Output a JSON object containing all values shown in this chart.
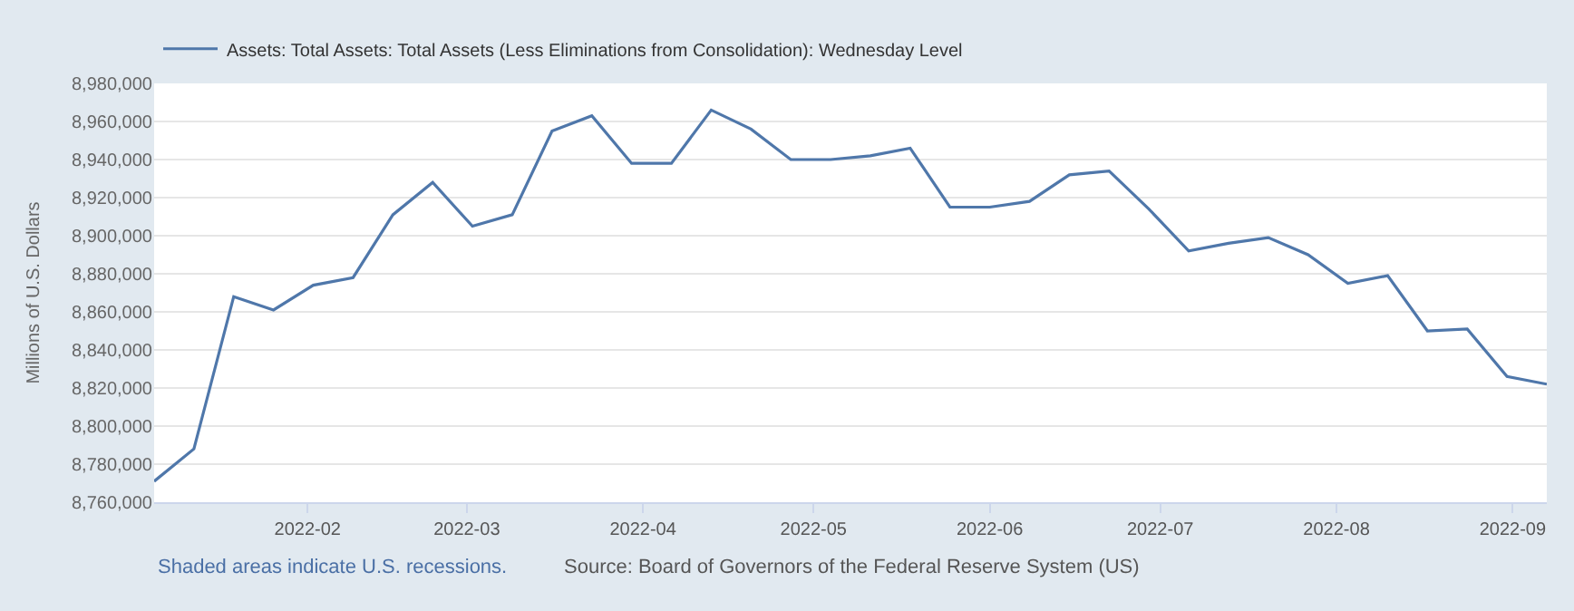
{
  "chart_data": {
    "type": "line",
    "ylabel": "Millions of U.S. Dollars",
    "x": [
      "2022-01-05",
      "2022-01-12",
      "2022-01-19",
      "2022-01-26",
      "2022-02-02",
      "2022-02-09",
      "2022-02-16",
      "2022-02-23",
      "2022-03-02",
      "2022-03-09",
      "2022-03-16",
      "2022-03-23",
      "2022-03-30",
      "2022-04-06",
      "2022-04-13",
      "2022-04-20",
      "2022-04-27",
      "2022-05-04",
      "2022-05-11",
      "2022-05-18",
      "2022-05-25",
      "2022-06-01",
      "2022-06-08",
      "2022-06-15",
      "2022-06-22",
      "2022-06-29",
      "2022-07-06",
      "2022-07-13",
      "2022-07-20",
      "2022-07-27",
      "2022-08-03",
      "2022-08-10",
      "2022-08-17",
      "2022-08-24",
      "2022-08-31",
      "2022-09-07"
    ],
    "series": [
      {
        "name": "Assets: Total Assets: Total Assets (Less Eliminations from Consolidation): Wednesday Level",
        "color": "#4f77aa",
        "values": [
          8771000,
          8788000,
          8868000,
          8861000,
          8874000,
          8878000,
          8911000,
          8928000,
          8905000,
          8911000,
          8955000,
          8963000,
          8938000,
          8938000,
          8966000,
          8956000,
          8940000,
          8940000,
          8942000,
          8946000,
          8915000,
          8915000,
          8918000,
          8932000,
          8934000,
          8914000,
          8892000,
          8896000,
          8899000,
          8890000,
          8875000,
          8879000,
          8850000,
          8851000,
          8826000,
          8822000
        ]
      }
    ],
    "xlim": [
      "2022-01-05",
      "2022-09-07"
    ],
    "xticks": [
      {
        "value": "2022-02-01",
        "label": "2022-02"
      },
      {
        "value": "2022-03-01",
        "label": "2022-03"
      },
      {
        "value": "2022-04-01",
        "label": "2022-04"
      },
      {
        "value": "2022-05-01",
        "label": "2022-05"
      },
      {
        "value": "2022-06-01",
        "label": "2022-06"
      },
      {
        "value": "2022-07-01",
        "label": "2022-07"
      },
      {
        "value": "2022-08-01",
        "label": "2022-08"
      },
      {
        "value": "2022-09-01",
        "label": "2022-09"
      }
    ],
    "ylim": [
      8760000,
      8980000
    ],
    "yticks": [
      {
        "value": 8760000,
        "label": "8,760,000"
      },
      {
        "value": 8780000,
        "label": "8,780,000"
      },
      {
        "value": 8800000,
        "label": "8,800,000"
      },
      {
        "value": 8820000,
        "label": "8,820,000"
      },
      {
        "value": 8840000,
        "label": "8,840,000"
      },
      {
        "value": 8860000,
        "label": "8,860,000"
      },
      {
        "value": 8880000,
        "label": "8,880,000"
      },
      {
        "value": 8900000,
        "label": "8,900,000"
      },
      {
        "value": 8920000,
        "label": "8,920,000"
      },
      {
        "value": 8940000,
        "label": "8,940,000"
      },
      {
        "value": 8960000,
        "label": "8,960,000"
      },
      {
        "value": 8980000,
        "label": "8,980,000"
      }
    ],
    "grid": "y",
    "legend": "top left",
    "marker": "none",
    "line_style": "solid",
    "annotations": [
      "Shaded areas indicate U.S. recessions.",
      "Source: Board of Governors of the Federal Reserve System (US)"
    ]
  }
}
